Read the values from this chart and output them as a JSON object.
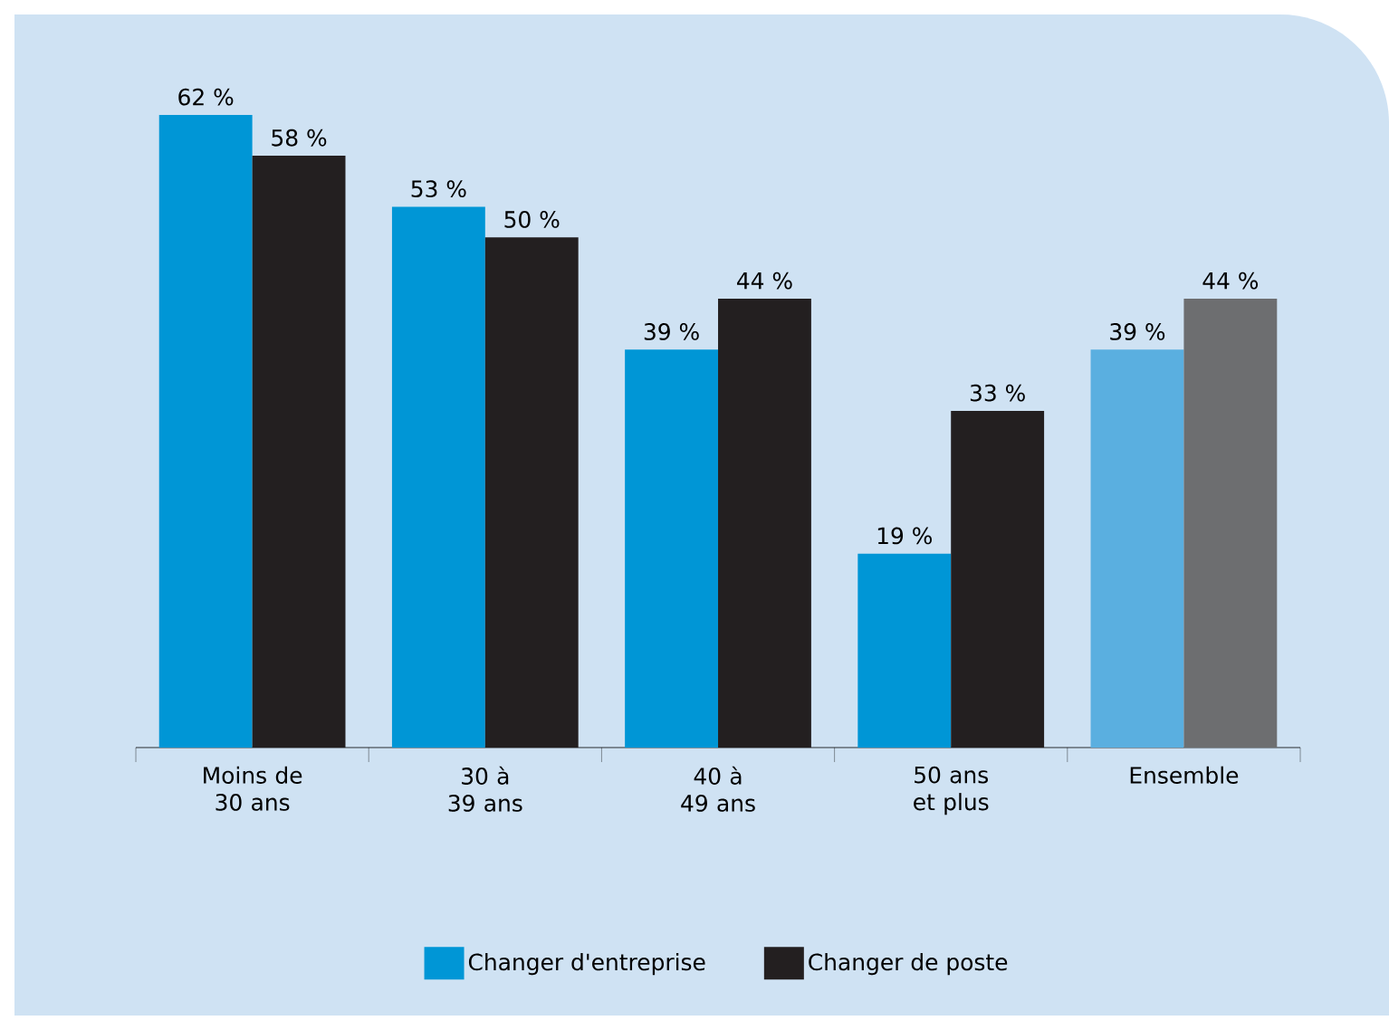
{
  "chart_data": {
    "type": "bar",
    "categories": [
      "Moins de 30 ans",
      "30 à 39 ans",
      "40 à 49 ans",
      "50 ans et plus",
      "Ensemble"
    ],
    "series": [
      {
        "name": "Changer d'entreprise",
        "color": "#0096d6",
        "colors": [
          "#0096d6",
          "#0096d6",
          "#0096d6",
          "#0096d6",
          "#5aafe0"
        ],
        "values": [
          62,
          53,
          39,
          19,
          39
        ],
        "value_labels": [
          "62 %",
          "53 %",
          "39 %",
          "19 %",
          "39 %"
        ]
      },
      {
        "name": "Changer de poste",
        "color": "#231f20",
        "colors": [
          "#231f20",
          "#231f20",
          "#231f20",
          "#231f20",
          "#6d6e70"
        ],
        "values": [
          58,
          50,
          44,
          33,
          44
        ],
        "value_labels": [
          "58 %",
          "50 %",
          "44 %",
          "33 %",
          "44 %"
        ]
      }
    ],
    "legend": "bottom"
  }
}
